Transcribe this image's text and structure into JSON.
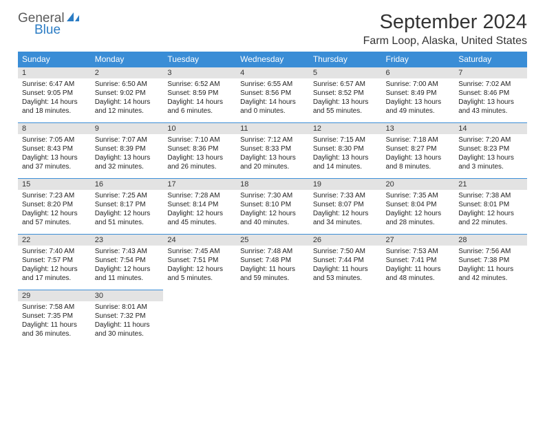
{
  "logo": {
    "general": "General",
    "blue": "Blue"
  },
  "title": "September 2024",
  "location": "Farm Loop, Alaska, United States",
  "colors": {
    "header_bg": "#3a8dd6",
    "header_text": "#ffffff",
    "daynum_bg": "#e3e3e3",
    "divider": "#3a8dd6",
    "logo_gray": "#5a5a5a",
    "logo_blue": "#2b7cc4"
  },
  "weekdays": [
    "Sunday",
    "Monday",
    "Tuesday",
    "Wednesday",
    "Thursday",
    "Friday",
    "Saturday"
  ],
  "weeks": [
    {
      "nums": [
        "1",
        "2",
        "3",
        "4",
        "5",
        "6",
        "7"
      ],
      "cells": [
        {
          "sunrise": "6:47 AM",
          "sunset": "9:05 PM",
          "day_h": "14",
          "day_m": "18"
        },
        {
          "sunrise": "6:50 AM",
          "sunset": "9:02 PM",
          "day_h": "14",
          "day_m": "12"
        },
        {
          "sunrise": "6:52 AM",
          "sunset": "8:59 PM",
          "day_h": "14",
          "day_m": "6"
        },
        {
          "sunrise": "6:55 AM",
          "sunset": "8:56 PM",
          "day_h": "14",
          "day_m": "0"
        },
        {
          "sunrise": "6:57 AM",
          "sunset": "8:52 PM",
          "day_h": "13",
          "day_m": "55"
        },
        {
          "sunrise": "7:00 AM",
          "sunset": "8:49 PM",
          "day_h": "13",
          "day_m": "49"
        },
        {
          "sunrise": "7:02 AM",
          "sunset": "8:46 PM",
          "day_h": "13",
          "day_m": "43"
        }
      ]
    },
    {
      "nums": [
        "8",
        "9",
        "10",
        "11",
        "12",
        "13",
        "14"
      ],
      "cells": [
        {
          "sunrise": "7:05 AM",
          "sunset": "8:43 PM",
          "day_h": "13",
          "day_m": "37"
        },
        {
          "sunrise": "7:07 AM",
          "sunset": "8:39 PM",
          "day_h": "13",
          "day_m": "32"
        },
        {
          "sunrise": "7:10 AM",
          "sunset": "8:36 PM",
          "day_h": "13",
          "day_m": "26"
        },
        {
          "sunrise": "7:12 AM",
          "sunset": "8:33 PM",
          "day_h": "13",
          "day_m": "20"
        },
        {
          "sunrise": "7:15 AM",
          "sunset": "8:30 PM",
          "day_h": "13",
          "day_m": "14"
        },
        {
          "sunrise": "7:18 AM",
          "sunset": "8:27 PM",
          "day_h": "13",
          "day_m": "8"
        },
        {
          "sunrise": "7:20 AM",
          "sunset": "8:23 PM",
          "day_h": "13",
          "day_m": "3"
        }
      ]
    },
    {
      "nums": [
        "15",
        "16",
        "17",
        "18",
        "19",
        "20",
        "21"
      ],
      "cells": [
        {
          "sunrise": "7:23 AM",
          "sunset": "8:20 PM",
          "day_h": "12",
          "day_m": "57"
        },
        {
          "sunrise": "7:25 AM",
          "sunset": "8:17 PM",
          "day_h": "12",
          "day_m": "51"
        },
        {
          "sunrise": "7:28 AM",
          "sunset": "8:14 PM",
          "day_h": "12",
          "day_m": "45"
        },
        {
          "sunrise": "7:30 AM",
          "sunset": "8:10 PM",
          "day_h": "12",
          "day_m": "40"
        },
        {
          "sunrise": "7:33 AM",
          "sunset": "8:07 PM",
          "day_h": "12",
          "day_m": "34"
        },
        {
          "sunrise": "7:35 AM",
          "sunset": "8:04 PM",
          "day_h": "12",
          "day_m": "28"
        },
        {
          "sunrise": "7:38 AM",
          "sunset": "8:01 PM",
          "day_h": "12",
          "day_m": "22"
        }
      ]
    },
    {
      "nums": [
        "22",
        "23",
        "24",
        "25",
        "26",
        "27",
        "28"
      ],
      "cells": [
        {
          "sunrise": "7:40 AM",
          "sunset": "7:57 PM",
          "day_h": "12",
          "day_m": "17"
        },
        {
          "sunrise": "7:43 AM",
          "sunset": "7:54 PM",
          "day_h": "12",
          "day_m": "11"
        },
        {
          "sunrise": "7:45 AM",
          "sunset": "7:51 PM",
          "day_h": "12",
          "day_m": "5"
        },
        {
          "sunrise": "7:48 AM",
          "sunset": "7:48 PM",
          "day_h": "11",
          "day_m": "59"
        },
        {
          "sunrise": "7:50 AM",
          "sunset": "7:44 PM",
          "day_h": "11",
          "day_m": "53"
        },
        {
          "sunrise": "7:53 AM",
          "sunset": "7:41 PM",
          "day_h": "11",
          "day_m": "48"
        },
        {
          "sunrise": "7:56 AM",
          "sunset": "7:38 PM",
          "day_h": "11",
          "day_m": "42"
        }
      ]
    },
    {
      "nums": [
        "29",
        "30",
        "",
        "",
        "",
        "",
        ""
      ],
      "cells": [
        {
          "sunrise": "7:58 AM",
          "sunset": "7:35 PM",
          "day_h": "11",
          "day_m": "36"
        },
        {
          "sunrise": "8:01 AM",
          "sunset": "7:32 PM",
          "day_h": "11",
          "day_m": "30"
        },
        null,
        null,
        null,
        null,
        null
      ]
    }
  ]
}
